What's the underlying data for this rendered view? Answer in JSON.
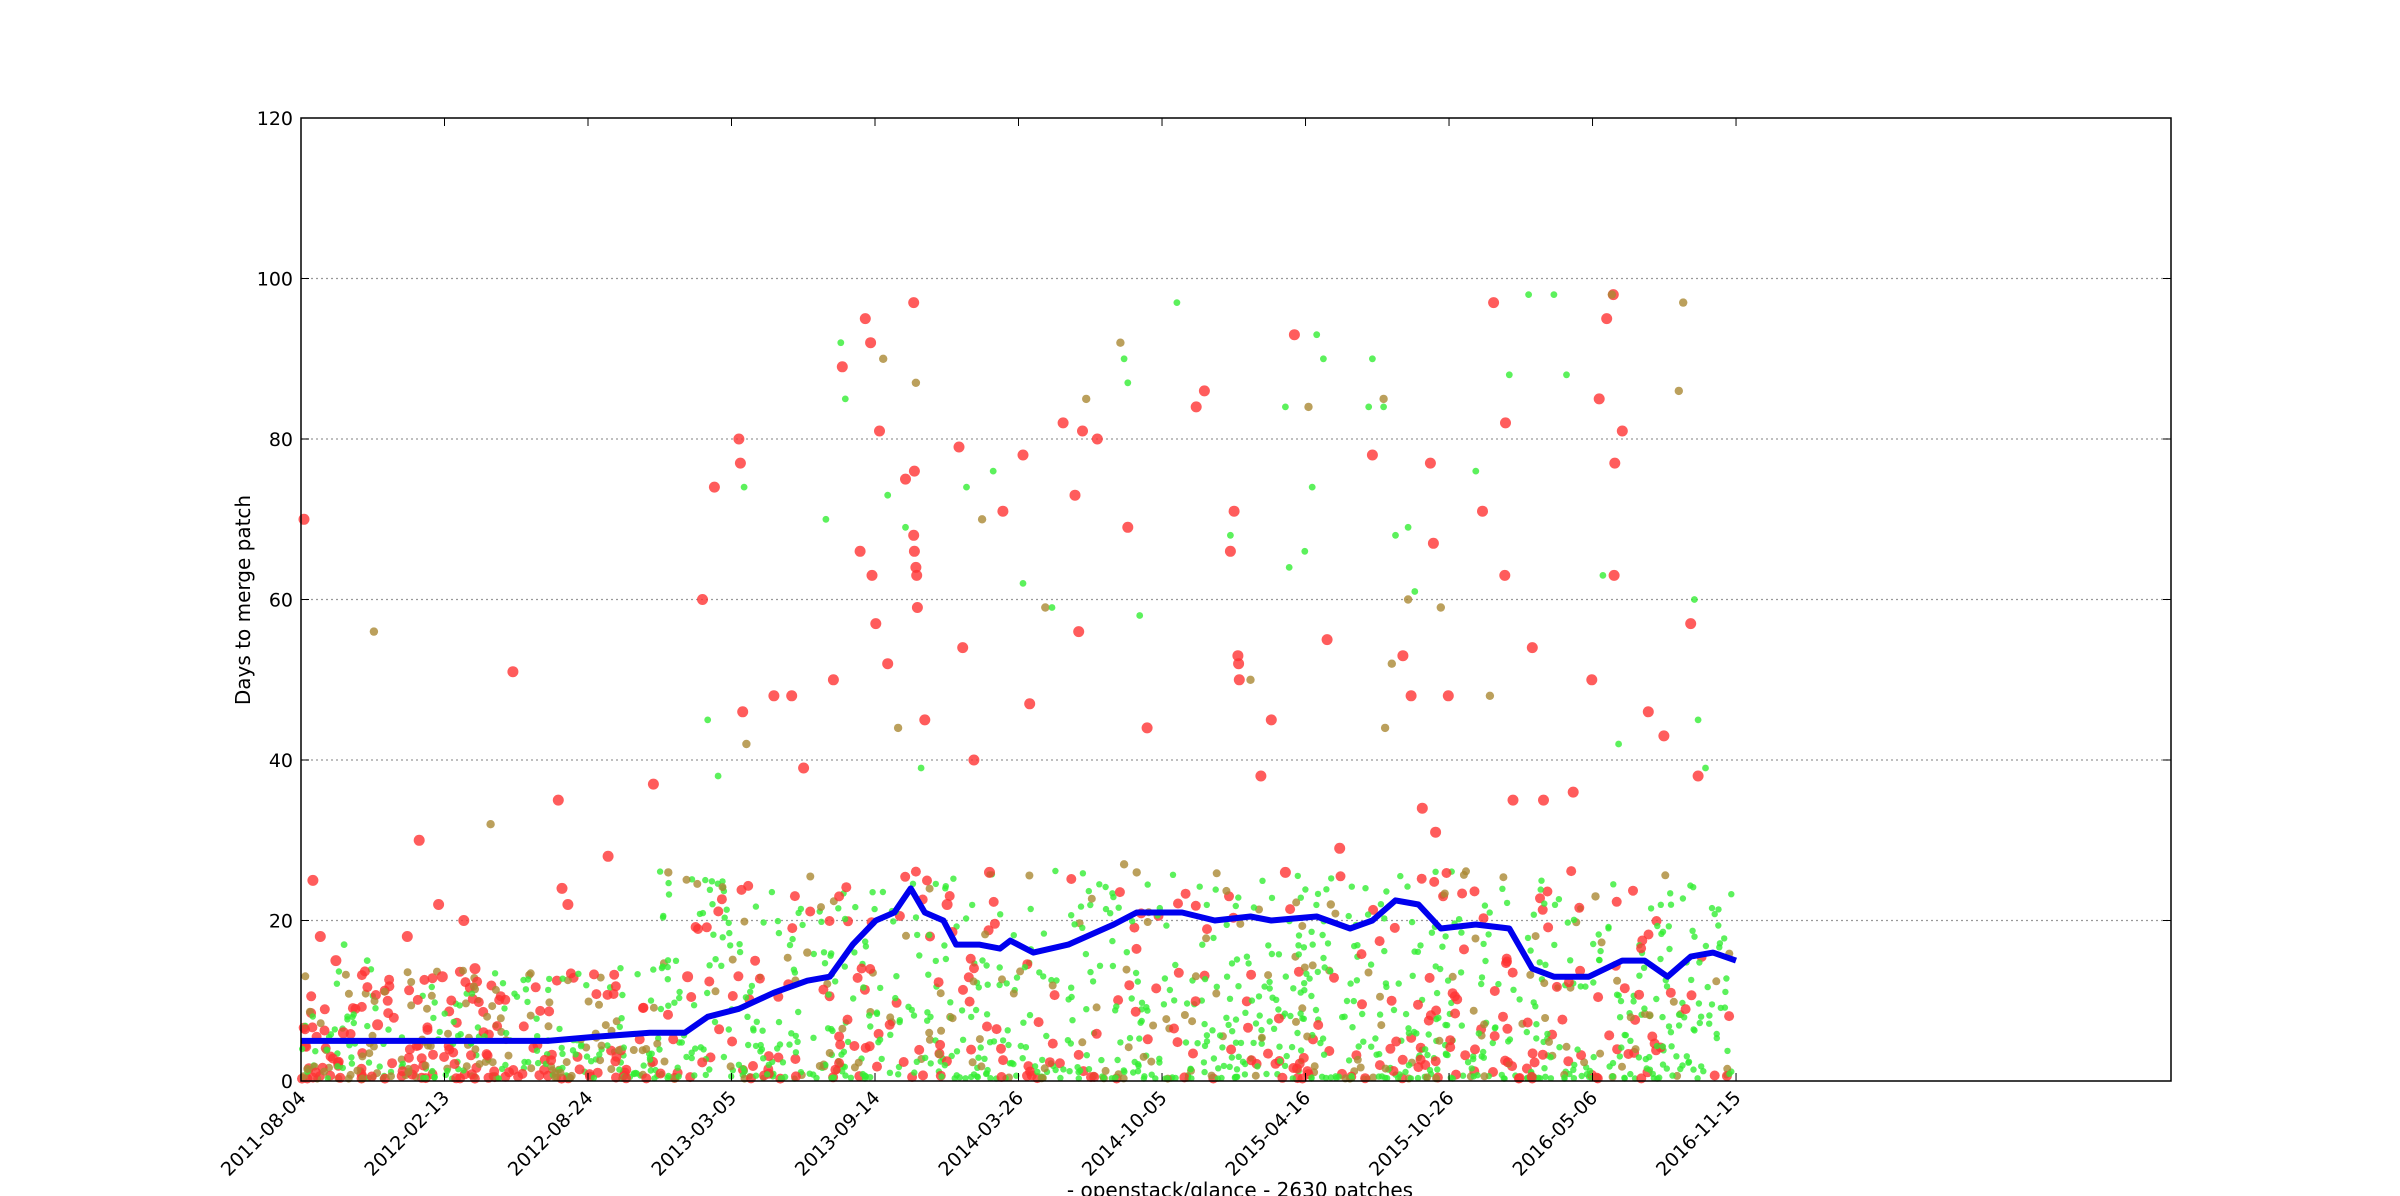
{
  "chart_data": {
    "type": "scatter",
    "title": "",
    "xlabel": "- openstack/glance - 2630 patches",
    "ylabel": "Days to merge patch",
    "x_tick_labels": [
      "2011-08-04",
      "2012-02-13",
      "2012-08-24",
      "2013-03-05",
      "2013-09-14",
      "2014-03-26",
      "2014-10-05",
      "2015-04-16",
      "2015-10-26",
      "2016-05-06",
      "2016-11-15"
    ],
    "xlim": [
      "2011-08-04",
      "2018-06-23"
    ],
    "ylim": [
      0,
      120
    ],
    "y_ticks": [
      0,
      20,
      40,
      60,
      80,
      100,
      120
    ],
    "y_tick_labels": [
      "0",
      "20",
      "40",
      "60",
      "80",
      "100",
      "120"
    ],
    "grid": "horizontal dotted",
    "legend": "none",
    "colors": {
      "small_patch": "#33ee33",
      "medium_patch": "#aa8833",
      "large_patch": "#ff3333",
      "trend": "#0000ee"
    },
    "series": [
      {
        "kind": "rolling-average-line",
        "points": [
          [
            "2011-08-04",
            5
          ],
          [
            "2011-12-01",
            5
          ],
          [
            "2012-04-01",
            5
          ],
          [
            "2012-07-01",
            5
          ],
          [
            "2012-09-01",
            5.5
          ],
          [
            "2012-11-15",
            6
          ],
          [
            "2013-01-01",
            6
          ],
          [
            "2013-02-01",
            8
          ],
          [
            "2013-03-15",
            9
          ],
          [
            "2013-05-01",
            11
          ],
          [
            "2013-06-15",
            12.5
          ],
          [
            "2013-07-15",
            13
          ],
          [
            "2013-08-15",
            17
          ],
          [
            "2013-09-15",
            20
          ],
          [
            "2013-10-10",
            21
          ],
          [
            "2013-11-01",
            24
          ],
          [
            "2013-11-20",
            21
          ],
          [
            "2013-12-15",
            20
          ],
          [
            "2014-01-01",
            17
          ],
          [
            "2014-02-01",
            17
          ],
          [
            "2014-03-01",
            16.5
          ],
          [
            "2014-03-15",
            17.5
          ],
          [
            "2014-04-15",
            16
          ],
          [
            "2014-06-01",
            17
          ],
          [
            "2014-08-01",
            19.5
          ],
          [
            "2014-09-01",
            21
          ],
          [
            "2014-11-01",
            21
          ],
          [
            "2014-12-15",
            20
          ],
          [
            "2015-02-01",
            20.5
          ],
          [
            "2015-03-01",
            20
          ],
          [
            "2015-05-01",
            20.5
          ],
          [
            "2015-06-15",
            19
          ],
          [
            "2015-07-15",
            20
          ],
          [
            "2015-08-15",
            22.5
          ],
          [
            "2015-09-15",
            22
          ],
          [
            "2015-10-15",
            19
          ],
          [
            "2015-12-01",
            19.5
          ],
          [
            "2016-01-15",
            19
          ],
          [
            "2016-02-15",
            14
          ],
          [
            "2016-03-15",
            13
          ],
          [
            "2016-05-01",
            13
          ],
          [
            "2016-06-15",
            15
          ],
          [
            "2016-07-15",
            15
          ],
          [
            "2016-08-15",
            13
          ],
          [
            "2016-09-15",
            15.5
          ],
          [
            "2016-10-15",
            16
          ],
          [
            "2016-11-15",
            15
          ]
        ]
      },
      {
        "kind": "large-patches",
        "color": "red",
        "points": [
          [
            "2011-08-08",
            70
          ],
          [
            "2011-08-20",
            25
          ],
          [
            "2011-08-30",
            18
          ],
          [
            "2011-09-20",
            15
          ],
          [
            "2011-09-30",
            6
          ],
          [
            "2011-11-15",
            7
          ],
          [
            "2011-12-25",
            18
          ],
          [
            "2012-01-10",
            30
          ],
          [
            "2012-02-05",
            22
          ],
          [
            "2012-02-10",
            13
          ],
          [
            "2012-03-10",
            20
          ],
          [
            "2012-03-25",
            14
          ],
          [
            "2012-05-15",
            51
          ],
          [
            "2012-07-15",
            35
          ],
          [
            "2012-07-20",
            24
          ],
          [
            "2012-07-28",
            22
          ],
          [
            "2012-09-20",
            28
          ],
          [
            "2012-11-20",
            37
          ],
          [
            "2013-01-05",
            13
          ],
          [
            "2013-01-25",
            60
          ],
          [
            "2013-02-10",
            74
          ],
          [
            "2013-03-15",
            80
          ],
          [
            "2013-03-17",
            77
          ],
          [
            "2013-03-20",
            46
          ],
          [
            "2013-05-01",
            48
          ],
          [
            "2013-05-25",
            48
          ],
          [
            "2013-06-10",
            39
          ],
          [
            "2013-07-20",
            50
          ],
          [
            "2013-08-01",
            89
          ],
          [
            "2013-08-25",
            66
          ],
          [
            "2013-09-01",
            95
          ],
          [
            "2013-09-08",
            92
          ],
          [
            "2013-09-20",
            81
          ],
          [
            "2013-09-10",
            63
          ],
          [
            "2013-09-15",
            57
          ],
          [
            "2013-10-01",
            52
          ],
          [
            "2013-10-25",
            75
          ],
          [
            "2013-11-05",
            97
          ],
          [
            "2013-11-06",
            76
          ],
          [
            "2013-11-05",
            68
          ],
          [
            "2013-11-06",
            66
          ],
          [
            "2013-11-08",
            64
          ],
          [
            "2013-11-09",
            63
          ],
          [
            "2013-11-10",
            59
          ],
          [
            "2013-11-20",
            45
          ],
          [
            "2014-01-05",
            79
          ],
          [
            "2014-01-10",
            54
          ],
          [
            "2014-01-25",
            40
          ],
          [
            "2014-03-05",
            71
          ],
          [
            "2014-04-01",
            78
          ],
          [
            "2014-04-10",
            47
          ],
          [
            "2014-05-25",
            82
          ],
          [
            "2014-06-10",
            73
          ],
          [
            "2014-06-15",
            56
          ],
          [
            "2014-06-20",
            81
          ],
          [
            "2014-07-10",
            80
          ],
          [
            "2014-08-20",
            69
          ],
          [
            "2014-09-15",
            44
          ],
          [
            "2014-11-20",
            84
          ],
          [
            "2014-12-01",
            86
          ],
          [
            "2015-01-05",
            66
          ],
          [
            "2015-01-10",
            71
          ],
          [
            "2015-01-15",
            53
          ],
          [
            "2015-01-16",
            52
          ],
          [
            "2015-01-17",
            50
          ],
          [
            "2015-02-15",
            38
          ],
          [
            "2015-03-01",
            45
          ],
          [
            "2015-04-01",
            93
          ],
          [
            "2015-05-15",
            55
          ],
          [
            "2015-07-15",
            78
          ],
          [
            "2015-08-25",
            53
          ],
          [
            "2015-09-05",
            48
          ],
          [
            "2015-09-20",
            34
          ],
          [
            "2015-10-01",
            77
          ],
          [
            "2015-10-05",
            67
          ],
          [
            "2015-10-25",
            48
          ],
          [
            "2015-12-10",
            71
          ],
          [
            "2015-12-25",
            97
          ],
          [
            "2016-01-10",
            82
          ],
          [
            "2016-01-09",
            63
          ],
          [
            "2016-02-15",
            54
          ],
          [
            "2016-03-01",
            35
          ],
          [
            "2016-04-10",
            36
          ],
          [
            "2016-05-05",
            50
          ],
          [
            "2016-05-15",
            85
          ],
          [
            "2016-05-25",
            95
          ],
          [
            "2016-06-03",
            98
          ],
          [
            "2016-06-05",
            77
          ],
          [
            "2016-06-04",
            63
          ],
          [
            "2016-06-15",
            81
          ],
          [
            "2016-07-20",
            46
          ],
          [
            "2016-08-10",
            43
          ],
          [
            "2016-09-15",
            57
          ],
          [
            "2016-09-25",
            38
          ],
          [
            "2015-06-01",
            29
          ],
          [
            "2015-10-08",
            31
          ],
          [
            "2014-02-15",
            26
          ],
          [
            "2013-12-20",
            22
          ],
          [
            "2016-01-20",
            35
          ],
          [
            "2015-03-20",
            26
          ]
        ]
      },
      {
        "kind": "medium-patches",
        "color": "olive",
        "points": [
          [
            "2011-11-10",
            56
          ],
          [
            "2012-04-15",
            32
          ],
          [
            "2012-12-10",
            26
          ],
          [
            "2013-03-25",
            42
          ],
          [
            "2013-09-25",
            90
          ],
          [
            "2013-10-15",
            44
          ],
          [
            "2013-11-08",
            87
          ],
          [
            "2014-02-05",
            70
          ],
          [
            "2014-05-01",
            59
          ],
          [
            "2014-06-25",
            85
          ],
          [
            "2014-08-10",
            92
          ],
          [
            "2014-08-15",
            27
          ],
          [
            "2015-02-01",
            50
          ],
          [
            "2015-04-20",
            84
          ],
          [
            "2015-07-30",
            85
          ],
          [
            "2015-08-10",
            52
          ],
          [
            "2015-08-01",
            44
          ],
          [
            "2015-09-01",
            60
          ],
          [
            "2015-10-15",
            59
          ],
          [
            "2015-12-20",
            48
          ],
          [
            "2016-06-01",
            98
          ],
          [
            "2016-08-30",
            86
          ],
          [
            "2016-09-05",
            97
          ],
          [
            "2016-05-10",
            23
          ],
          [
            "2013-06-15",
            16
          ],
          [
            "2014-09-01",
            26
          ],
          [
            "2015-05-20",
            22
          ]
        ]
      },
      {
        "kind": "small-patches",
        "color": "green",
        "points": [
          [
            "2011-10-01",
            17
          ],
          [
            "2011-11-01",
            15
          ],
          [
            "2013-02-01",
            45
          ],
          [
            "2013-02-15",
            38
          ],
          [
            "2013-03-22",
            74
          ],
          [
            "2013-07-10",
            70
          ],
          [
            "2013-07-30",
            92
          ],
          [
            "2013-08-05",
            85
          ],
          [
            "2013-10-01",
            73
          ],
          [
            "2013-10-25",
            69
          ],
          [
            "2013-11-15",
            39
          ],
          [
            "2014-01-15",
            74
          ],
          [
            "2014-02-20",
            76
          ],
          [
            "2014-04-01",
            62
          ],
          [
            "2014-05-10",
            59
          ],
          [
            "2014-08-15",
            90
          ],
          [
            "2014-08-20",
            87
          ],
          [
            "2014-09-05",
            58
          ],
          [
            "2014-10-25",
            97
          ],
          [
            "2015-01-05",
            68
          ],
          [
            "2015-03-20",
            84
          ],
          [
            "2015-03-25",
            64
          ],
          [
            "2015-04-15",
            66
          ],
          [
            "2015-04-25",
            74
          ],
          [
            "2015-05-01",
            93
          ],
          [
            "2015-05-10",
            90
          ],
          [
            "2015-07-10",
            84
          ],
          [
            "2015-07-15",
            90
          ],
          [
            "2015-07-30",
            84
          ],
          [
            "2015-08-15",
            68
          ],
          [
            "2015-09-01",
            69
          ],
          [
            "2015-09-10",
            61
          ],
          [
            "2015-12-01",
            76
          ],
          [
            "2016-01-15",
            88
          ],
          [
            "2016-02-10",
            98
          ],
          [
            "2016-03-15",
            98
          ],
          [
            "2016-04-01",
            88
          ],
          [
            "2016-05-20",
            63
          ],
          [
            "2016-06-10",
            42
          ],
          [
            "2016-09-20",
            60
          ],
          [
            "2016-09-25",
            45
          ],
          [
            "2016-10-05",
            39
          ]
        ]
      }
    ]
  }
}
